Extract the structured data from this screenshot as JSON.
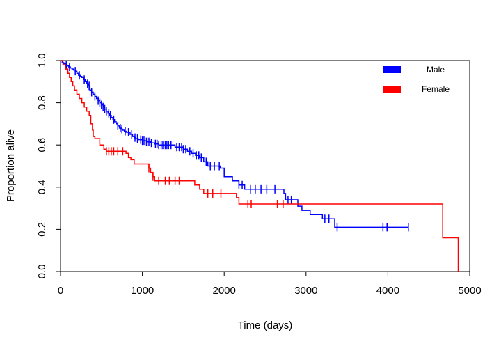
{
  "chart_data": {
    "type": "line",
    "chart_subtype": "kaplan-meier step survival curves with censor ticks",
    "title": "",
    "xlabel": "Time (days)",
    "ylabel": "Proportion alive",
    "xlim": [
      0,
      5000
    ],
    "ylim": [
      0,
      1
    ],
    "xticks": [
      0,
      1000,
      2000,
      3000,
      4000,
      5000
    ],
    "yticks": [
      0.0,
      0.2,
      0.4,
      0.6,
      0.8,
      1.0
    ],
    "ytick_labels": [
      "0.0",
      "0.2",
      "0.4",
      "0.6",
      "0.8",
      "1.0"
    ],
    "grid": false,
    "legend_position": "top-right",
    "series": [
      {
        "name": "Male",
        "color": "#0000ff",
        "steps": [
          [
            0,
            1.0
          ],
          [
            20,
            0.99
          ],
          [
            40,
            0.985
          ],
          [
            60,
            0.98
          ],
          [
            80,
            0.975
          ],
          [
            100,
            0.97
          ],
          [
            120,
            0.965
          ],
          [
            140,
            0.96
          ],
          [
            160,
            0.955
          ],
          [
            180,
            0.95
          ],
          [
            200,
            0.94
          ],
          [
            220,
            0.93
          ],
          [
            240,
            0.925
          ],
          [
            260,
            0.92
          ],
          [
            280,
            0.91
          ],
          [
            300,
            0.9
          ],
          [
            320,
            0.89
          ],
          [
            340,
            0.88
          ],
          [
            360,
            0.86
          ],
          [
            380,
            0.85
          ],
          [
            400,
            0.84
          ],
          [
            420,
            0.83
          ],
          [
            440,
            0.82
          ],
          [
            460,
            0.81
          ],
          [
            480,
            0.8
          ],
          [
            500,
            0.79
          ],
          [
            520,
            0.78
          ],
          [
            540,
            0.77
          ],
          [
            560,
            0.76
          ],
          [
            580,
            0.75
          ],
          [
            600,
            0.74
          ],
          [
            620,
            0.73
          ],
          [
            640,
            0.72
          ],
          [
            660,
            0.71
          ],
          [
            680,
            0.7
          ],
          [
            700,
            0.69
          ],
          [
            720,
            0.68
          ],
          [
            740,
            0.675
          ],
          [
            760,
            0.67
          ],
          [
            780,
            0.665
          ],
          [
            800,
            0.66
          ],
          [
            850,
            0.65
          ],
          [
            880,
            0.64
          ],
          [
            900,
            0.635
          ],
          [
            920,
            0.63
          ],
          [
            950,
            0.625
          ],
          [
            1000,
            0.62
          ],
          [
            1050,
            0.615
          ],
          [
            1100,
            0.61
          ],
          [
            1150,
            0.605
          ],
          [
            1200,
            0.6
          ],
          [
            1400,
            0.59
          ],
          [
            1500,
            0.58
          ],
          [
            1550,
            0.57
          ],
          [
            1600,
            0.56
          ],
          [
            1650,
            0.55
          ],
          [
            1700,
            0.54
          ],
          [
            1750,
            0.52
          ],
          [
            1800,
            0.5
          ],
          [
            1950,
            0.49
          ],
          [
            2000,
            0.45
          ],
          [
            2100,
            0.43
          ],
          [
            2180,
            0.41
          ],
          [
            2250,
            0.39
          ],
          [
            2730,
            0.37
          ],
          [
            2750,
            0.34
          ],
          [
            2900,
            0.31
          ],
          [
            2950,
            0.29
          ],
          [
            3050,
            0.27
          ],
          [
            3200,
            0.25
          ],
          [
            3350,
            0.21
          ],
          [
            4250,
            0.21
          ]
        ],
        "censor_x": [
          70,
          110,
          180,
          230,
          290,
          330,
          350,
          380,
          420,
          460,
          480,
          500,
          520,
          540,
          560,
          590,
          610,
          650,
          700,
          730,
          750,
          790,
          830,
          870,
          910,
          940,
          980,
          1000,
          1020,
          1050,
          1080,
          1110,
          1160,
          1180,
          1200,
          1230,
          1250,
          1280,
          1300,
          1320,
          1350,
          1420,
          1450,
          1480,
          1500,
          1530,
          1580,
          1620,
          1660,
          1690,
          1720,
          1780,
          1830,
          1880,
          1940,
          2180,
          2220,
          2320,
          2380,
          2450,
          2520,
          2620,
          2780,
          2820,
          3230,
          3280,
          3380,
          3940,
          3990,
          4250
        ]
      },
      {
        "name": "Female",
        "color": "#ff0000",
        "steps": [
          [
            0,
            1.0
          ],
          [
            30,
            0.98
          ],
          [
            60,
            0.96
          ],
          [
            90,
            0.94
          ],
          [
            110,
            0.92
          ],
          [
            130,
            0.9
          ],
          [
            150,
            0.88
          ],
          [
            170,
            0.86
          ],
          [
            200,
            0.84
          ],
          [
            230,
            0.82
          ],
          [
            260,
            0.8
          ],
          [
            290,
            0.78
          ],
          [
            320,
            0.76
          ],
          [
            350,
            0.74
          ],
          [
            370,
            0.7
          ],
          [
            390,
            0.67
          ],
          [
            400,
            0.64
          ],
          [
            420,
            0.63
          ],
          [
            480,
            0.6
          ],
          [
            530,
            0.58
          ],
          [
            560,
            0.57
          ],
          [
            800,
            0.56
          ],
          [
            830,
            0.54
          ],
          [
            860,
            0.53
          ],
          [
            900,
            0.51
          ],
          [
            1080,
            0.49
          ],
          [
            1100,
            0.47
          ],
          [
            1130,
            0.45
          ],
          [
            1150,
            0.43
          ],
          [
            1640,
            0.41
          ],
          [
            1700,
            0.39
          ],
          [
            1750,
            0.37
          ],
          [
            2150,
            0.35
          ],
          [
            2180,
            0.32
          ],
          [
            4670,
            0.16
          ],
          [
            4860,
            0.0
          ]
        ],
        "censor_x": [
          560,
          590,
          620,
          650,
          700,
          760,
          1080,
          1130,
          1200,
          1280,
          1330,
          1400,
          1450,
          1800,
          1860,
          1960,
          2290,
          2330,
          2650,
          2720
        ]
      }
    ]
  }
}
